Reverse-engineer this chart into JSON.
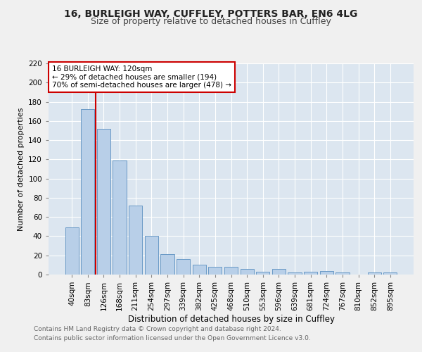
{
  "title1": "16, BURLEIGH WAY, CUFFLEY, POTTERS BAR, EN6 4LG",
  "title2": "Size of property relative to detached houses in Cuffley",
  "xlabel": "Distribution of detached houses by size in Cuffley",
  "ylabel": "Number of detached properties",
  "categories": [
    "40sqm",
    "83sqm",
    "126sqm",
    "168sqm",
    "211sqm",
    "254sqm",
    "297sqm",
    "339sqm",
    "382sqm",
    "425sqm",
    "468sqm",
    "510sqm",
    "553sqm",
    "596sqm",
    "639sqm",
    "681sqm",
    "724sqm",
    "767sqm",
    "810sqm",
    "852sqm",
    "895sqm"
  ],
  "values": [
    49,
    172,
    152,
    119,
    72,
    40,
    21,
    16,
    10,
    8,
    8,
    6,
    3,
    6,
    2,
    3,
    4,
    2,
    0,
    2,
    2
  ],
  "bar_color": "#b8cfe8",
  "bar_edgecolor": "#5a8fc0",
  "red_line_index": 2,
  "annotation_text": "16 BURLEIGH WAY: 120sqm\n← 29% of detached houses are smaller (194)\n70% of semi-detached houses are larger (478) →",
  "annotation_box_facecolor": "#ffffff",
  "annotation_box_edgecolor": "#cc0000",
  "ylim": [
    0,
    220
  ],
  "yticks": [
    0,
    20,
    40,
    60,
    80,
    100,
    120,
    140,
    160,
    180,
    200,
    220
  ],
  "background_color": "#dce6f0",
  "fig_facecolor": "#f0f0f0",
  "title1_fontsize": 10,
  "title2_fontsize": 9,
  "xlabel_fontsize": 8.5,
  "ylabel_fontsize": 8,
  "tick_fontsize": 7.5,
  "annotation_fontsize": 7.5,
  "footer_fontsize": 6.5,
  "footer_line1": "Contains HM Land Registry data © Crown copyright and database right 2024.",
  "footer_line2": "Contains public sector information licensed under the Open Government Licence v3.0."
}
